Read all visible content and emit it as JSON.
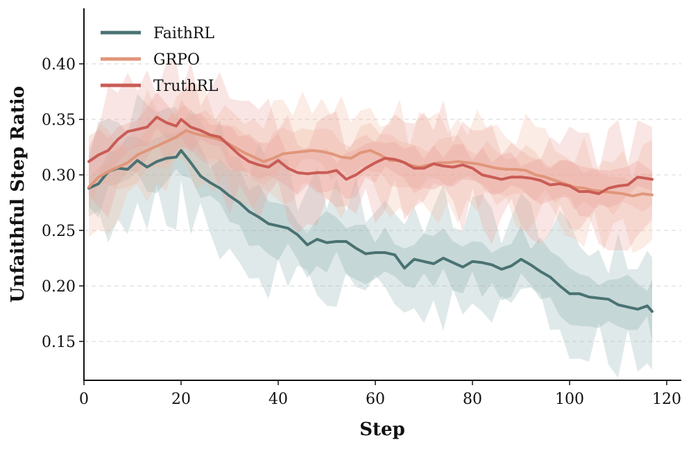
{
  "chart_data": {
    "type": "line",
    "title": "",
    "xlabel": "Step",
    "ylabel": "Unfaithful Step Ratio",
    "xlim": [
      0,
      123
    ],
    "ylim": [
      0.115,
      0.45
    ],
    "xticks": [
      0,
      20,
      40,
      60,
      80,
      100,
      120
    ],
    "yticks": [
      0.15,
      0.2,
      0.25,
      0.3,
      0.35,
      0.4
    ],
    "ytick_labels": [
      "0.15",
      "0.20",
      "0.25",
      "0.30",
      "0.35",
      "0.40"
    ],
    "grid": "horizontal dashed",
    "legend_position": "top-left",
    "series": [
      {
        "name": "FaithRL",
        "color": "#4a7272",
        "shade": "#8fb1b1",
        "points": [
          [
            1,
            0.288
          ],
          [
            3,
            0.292
          ],
          [
            5,
            0.303
          ],
          [
            7,
            0.306
          ],
          [
            9,
            0.305
          ],
          [
            11,
            0.313
          ],
          [
            13,
            0.307
          ],
          [
            15,
            0.312
          ],
          [
            17,
            0.315
          ],
          [
            19,
            0.316
          ],
          [
            20,
            0.322
          ],
          [
            22,
            0.311
          ],
          [
            24,
            0.299
          ],
          [
            26,
            0.293
          ],
          [
            28,
            0.288
          ],
          [
            30,
            0.281
          ],
          [
            32,
            0.275
          ],
          [
            34,
            0.267
          ],
          [
            36,
            0.262
          ],
          [
            38,
            0.256
          ],
          [
            40,
            0.254
          ],
          [
            42,
            0.252
          ],
          [
            44,
            0.246
          ],
          [
            46,
            0.237
          ],
          [
            48,
            0.242
          ],
          [
            50,
            0.239
          ],
          [
            52,
            0.24
          ],
          [
            54,
            0.24
          ],
          [
            56,
            0.234
          ],
          [
            58,
            0.229
          ],
          [
            60,
            0.23
          ],
          [
            62,
            0.23
          ],
          [
            64,
            0.228
          ],
          [
            66,
            0.216
          ],
          [
            68,
            0.224
          ],
          [
            70,
            0.222
          ],
          [
            72,
            0.22
          ],
          [
            74,
            0.225
          ],
          [
            76,
            0.221
          ],
          [
            78,
            0.217
          ],
          [
            80,
            0.222
          ],
          [
            82,
            0.221
          ],
          [
            84,
            0.219
          ],
          [
            86,
            0.215
          ],
          [
            88,
            0.218
          ],
          [
            90,
            0.224
          ],
          [
            92,
            0.219
          ],
          [
            94,
            0.213
          ],
          [
            96,
            0.208
          ],
          [
            98,
            0.2
          ],
          [
            100,
            0.193
          ],
          [
            102,
            0.193
          ],
          [
            104,
            0.19
          ],
          [
            106,
            0.189
          ],
          [
            108,
            0.188
          ],
          [
            110,
            0.183
          ],
          [
            112,
            0.181
          ],
          [
            114,
            0.179
          ],
          [
            116,
            0.182
          ],
          [
            117,
            0.177
          ]
        ],
        "band": [
          0.025,
          0.055
        ]
      },
      {
        "name": "GRPO",
        "color": "#e0967a",
        "shade": "#f1b9a3",
        "points": [
          [
            1,
            0.289
          ],
          [
            3,
            0.298
          ],
          [
            5,
            0.303
          ],
          [
            7,
            0.307
          ],
          [
            9,
            0.311
          ],
          [
            11,
            0.318
          ],
          [
            13,
            0.322
          ],
          [
            15,
            0.326
          ],
          [
            17,
            0.33
          ],
          [
            19,
            0.334
          ],
          [
            21,
            0.34
          ],
          [
            23,
            0.337
          ],
          [
            25,
            0.335
          ],
          [
            27,
            0.333
          ],
          [
            29,
            0.33
          ],
          [
            31,
            0.325
          ],
          [
            33,
            0.32
          ],
          [
            35,
            0.316
          ],
          [
            37,
            0.312
          ],
          [
            39,
            0.315
          ],
          [
            41,
            0.319
          ],
          [
            43,
            0.32
          ],
          [
            45,
            0.321
          ],
          [
            47,
            0.322
          ],
          [
            49,
            0.321
          ],
          [
            51,
            0.319
          ],
          [
            53,
            0.316
          ],
          [
            55,
            0.315
          ],
          [
            57,
            0.32
          ],
          [
            59,
            0.322
          ],
          [
            61,
            0.318
          ],
          [
            63,
            0.313
          ],
          [
            65,
            0.313
          ],
          [
            67,
            0.309
          ],
          [
            69,
            0.307
          ],
          [
            71,
            0.309
          ],
          [
            73,
            0.311
          ],
          [
            75,
            0.311
          ],
          [
            77,
            0.312
          ],
          [
            79,
            0.311
          ],
          [
            81,
            0.31
          ],
          [
            83,
            0.308
          ],
          [
            85,
            0.306
          ],
          [
            87,
            0.305
          ],
          [
            89,
            0.305
          ],
          [
            91,
            0.304
          ],
          [
            93,
            0.3
          ],
          [
            95,
            0.298
          ],
          [
            97,
            0.295
          ],
          [
            99,
            0.292
          ],
          [
            101,
            0.289
          ],
          [
            103,
            0.288
          ],
          [
            105,
            0.286
          ],
          [
            107,
            0.285
          ],
          [
            109,
            0.284
          ],
          [
            111,
            0.283
          ],
          [
            113,
            0.281
          ],
          [
            115,
            0.283
          ],
          [
            117,
            0.282
          ]
        ],
        "band": [
          0.02,
          0.045
        ]
      },
      {
        "name": "TruthRL",
        "color": "#c95c55",
        "shade": "#e8a39c",
        "points": [
          [
            1,
            0.312
          ],
          [
            3,
            0.318
          ],
          [
            5,
            0.322
          ],
          [
            7,
            0.332
          ],
          [
            9,
            0.339
          ],
          [
            11,
            0.341
          ],
          [
            13,
            0.343
          ],
          [
            15,
            0.352
          ],
          [
            17,
            0.347
          ],
          [
            19,
            0.344
          ],
          [
            20,
            0.35
          ],
          [
            22,
            0.343
          ],
          [
            24,
            0.34
          ],
          [
            26,
            0.336
          ],
          [
            28,
            0.334
          ],
          [
            30,
            0.326
          ],
          [
            32,
            0.318
          ],
          [
            34,
            0.312
          ],
          [
            36,
            0.309
          ],
          [
            38,
            0.307
          ],
          [
            40,
            0.313
          ],
          [
            42,
            0.306
          ],
          [
            44,
            0.302
          ],
          [
            46,
            0.301
          ],
          [
            48,
            0.302
          ],
          [
            50,
            0.302
          ],
          [
            52,
            0.304
          ],
          [
            54,
            0.296
          ],
          [
            56,
            0.3
          ],
          [
            58,
            0.306
          ],
          [
            60,
            0.311
          ],
          [
            62,
            0.315
          ],
          [
            64,
            0.314
          ],
          [
            66,
            0.311
          ],
          [
            68,
            0.306
          ],
          [
            70,
            0.306
          ],
          [
            72,
            0.31
          ],
          [
            74,
            0.308
          ],
          [
            76,
            0.307
          ],
          [
            78,
            0.309
          ],
          [
            80,
            0.306
          ],
          [
            82,
            0.3
          ],
          [
            84,
            0.298
          ],
          [
            86,
            0.296
          ],
          [
            88,
            0.298
          ],
          [
            90,
            0.298
          ],
          [
            92,
            0.297
          ],
          [
            94,
            0.295
          ],
          [
            96,
            0.291
          ],
          [
            98,
            0.292
          ],
          [
            100,
            0.29
          ],
          [
            102,
            0.285
          ],
          [
            104,
            0.285
          ],
          [
            106,
            0.283
          ],
          [
            108,
            0.288
          ],
          [
            110,
            0.29
          ],
          [
            112,
            0.291
          ],
          [
            114,
            0.298
          ],
          [
            117,
            0.296
          ]
        ],
        "band": [
          0.02,
          0.05
        ]
      }
    ]
  }
}
